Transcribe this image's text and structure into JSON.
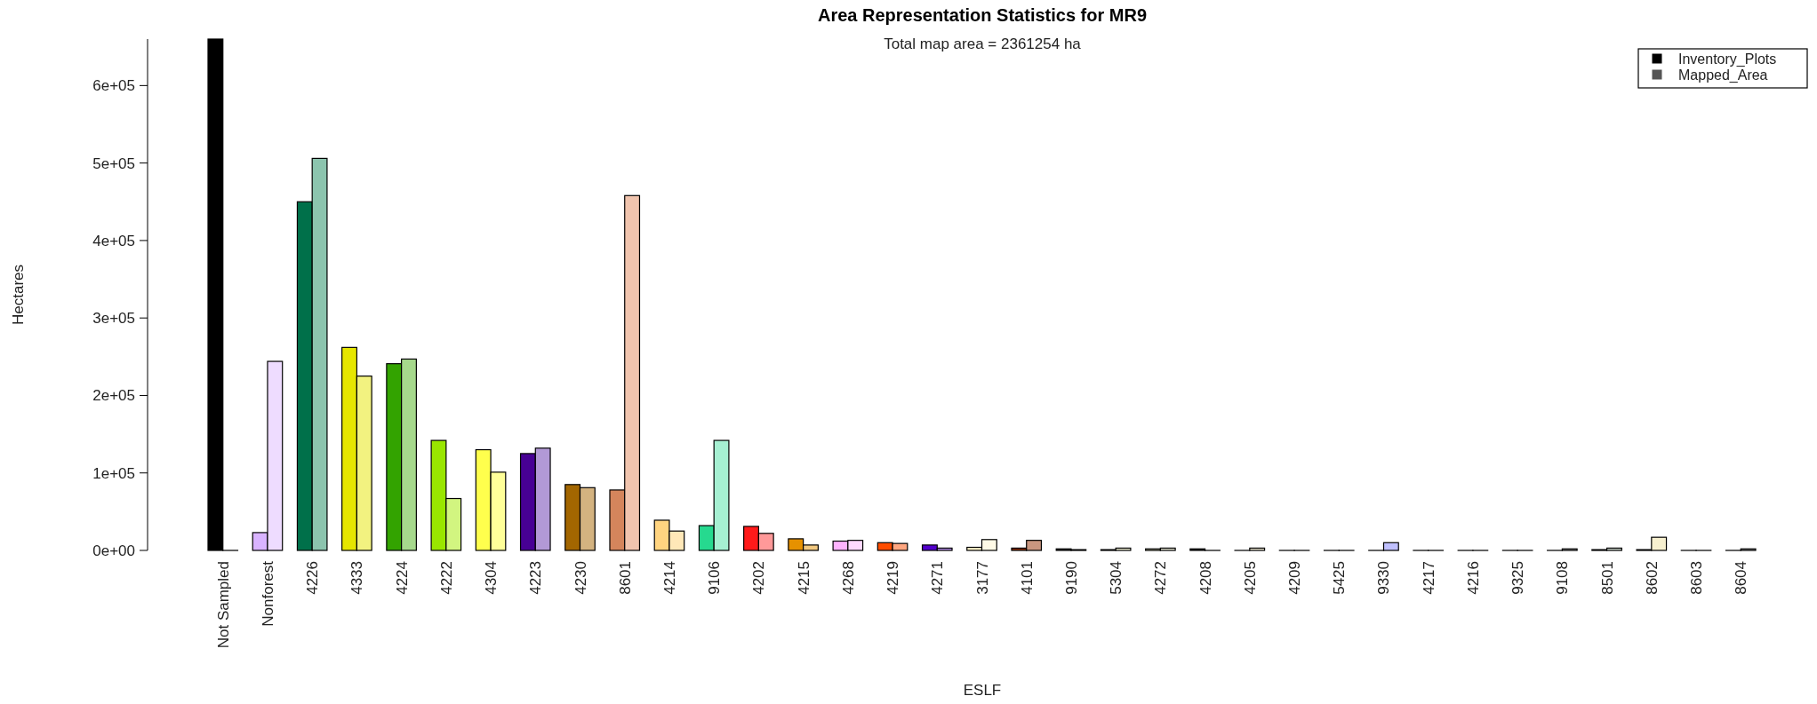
{
  "chart_data": {
    "type": "bar",
    "title": "Area Representation Statistics for MR9",
    "subtitle": "Total map area = 2361254 ha",
    "xlabel": "ESLF",
    "ylabel": "Hectares",
    "categories": [
      "Not Sampled",
      "Nonforest",
      "4226",
      "4333",
      "4224",
      "4222",
      "4304",
      "4223",
      "4230",
      "8601",
      "4214",
      "9106",
      "4202",
      "4215",
      "4268",
      "4219",
      "4271",
      "3177",
      "4101",
      "9190",
      "5304",
      "4272",
      "4208",
      "4205",
      "4209",
      "5425",
      "9330",
      "4217",
      "4216",
      "9325",
      "9108",
      "8501",
      "8602",
      "8603",
      "8604"
    ],
    "series": [
      {
        "name": "Inventory_Plots",
        "color": "#000000",
        "colors": [
          "#000000",
          "#d9b3ff",
          "#00704a",
          "#e6e600",
          "#33a300",
          "#99e600",
          "#ffff4d",
          "#470094",
          "#a36600",
          "#d4855c",
          "#ffd480",
          "#26d98f",
          "#ff1a1a",
          "#e69100",
          "#ffb3ff",
          "#ff4d00",
          "#5200cc",
          "#fff5cc",
          "#8a2e00",
          "#333333",
          "#d9d9a3",
          "#c4c4a0",
          "#222222",
          "#d4c9a0",
          "#aaaaaa",
          "#aaaaaa",
          "#8080ff",
          "#aaaaaa",
          "#aaaaaa",
          "#aaaaaa",
          "#444444",
          "#8fa38f",
          "#f0e0a0",
          "#aaaaaa",
          "#333333"
        ],
        "values": [
          660000,
          23000,
          450000,
          262000,
          241000,
          142000,
          130000,
          125000,
          85000,
          78000,
          39000,
          32000,
          31000,
          15000,
          12000,
          10000,
          7000,
          4000,
          3000,
          2000,
          1000,
          2000,
          2000,
          0,
          0,
          0,
          0,
          0,
          0,
          0,
          0,
          1000,
          1000,
          0,
          0
        ]
      },
      {
        "name": "Mapped_Area",
        "color": "#555555",
        "colors": [
          "#555555",
          "#eedcff",
          "#8cc4ae",
          "#f2f280",
          "#a6d98c",
          "#d2f580",
          "#ffff99",
          "#b299d6",
          "#d4b380",
          "#f0c4ae",
          "#ffe8b8",
          "#a6f0d2",
          "#ff9999",
          "#f2c880",
          "#ffd9ff",
          "#ffa680",
          "#b38ce6",
          "#fffae6",
          "#c9967f",
          "#999999",
          "#ececd1",
          "#e1e1cf",
          "#909090",
          "#e9e4cf",
          "#d4d4d4",
          "#d4d4d4",
          "#c0c0ff",
          "#d4d4d4",
          "#d4d4d4",
          "#d4d4d4",
          "#a1a1a1",
          "#c7d1c7",
          "#f7f0cf",
          "#d4d4d4",
          "#999999"
        ],
        "values": [
          0,
          244000,
          506000,
          225000,
          247000,
          67000,
          101000,
          132000,
          81000,
          458000,
          25000,
          142000,
          22000,
          7000,
          13000,
          9000,
          3000,
          14000,
          13000,
          1000,
          3000,
          3000,
          0,
          3000,
          0,
          0,
          10000,
          0,
          0,
          0,
          2000,
          3000,
          17000,
          0,
          2000
        ]
      }
    ],
    "ylim": [
      0,
      660000
    ],
    "yticks": [
      {
        "value": 0,
        "label": "0e+00"
      },
      {
        "value": 100000,
        "label": "1e+05"
      },
      {
        "value": 200000,
        "label": "2e+05"
      },
      {
        "value": 300000,
        "label": "3e+05"
      },
      {
        "value": 400000,
        "label": "4e+05"
      },
      {
        "value": 500000,
        "label": "5e+05"
      },
      {
        "value": 600000,
        "label": "6e+05"
      }
    ],
    "grid": false,
    "legend": "top right"
  }
}
